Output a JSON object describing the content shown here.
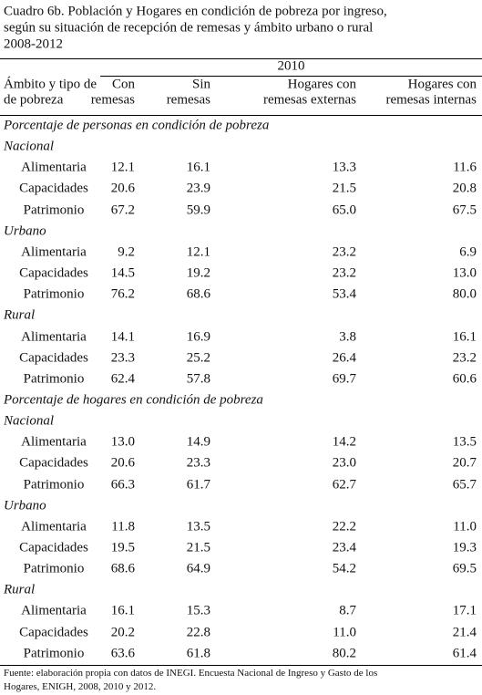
{
  "title": [
    "Cuadro 6b. Población y Hogares en condición de pobreza por ingreso,",
    "según su situación de recepción de remesas y ámbito urbano o rural",
    "2008-2012"
  ],
  "table": {
    "year": "2010",
    "header": [
      [
        "Ámbito y tipo de",
        "de pobreza"
      ],
      [
        "Con",
        "remesas"
      ],
      [
        "Sin",
        "remesas"
      ],
      [
        "Hogares con",
        "remesas externas"
      ],
      [
        "Hogares con",
        "remesas internas"
      ]
    ],
    "sections": [
      {
        "title": "Porcentaje de personas en condición de pobreza",
        "groups": [
          {
            "name": "Nacional",
            "rows": [
              {
                "label": "Alimentaria",
                "values": [
                  "12.1",
                  "16.1",
                  "13.3",
                  "11.6"
                ]
              },
              {
                "label": "Capacidades",
                "values": [
                  "20.6",
                  "23.9",
                  "21.5",
                  "20.8"
                ]
              },
              {
                "label": "Patrimonio",
                "values": [
                  "67.2",
                  "59.9",
                  "65.0",
                  "67.5"
                ]
              }
            ]
          },
          {
            "name": "Urbano",
            "rows": [
              {
                "label": "Alimentaria",
                "values": [
                  "9.2",
                  "12.1",
                  "23.2",
                  "6.9"
                ]
              },
              {
                "label": "Capacidades",
                "values": [
                  "14.5",
                  "19.2",
                  "23.2",
                  "13.0"
                ]
              },
              {
                "label": "Patrimonio",
                "values": [
                  "76.2",
                  "68.6",
                  "53.4",
                  "80.0"
                ]
              }
            ]
          },
          {
            "name": "Rural",
            "rows": [
              {
                "label": "Alimentaria",
                "values": [
                  "14.1",
                  "16.9",
                  "3.8",
                  "16.1"
                ]
              },
              {
                "label": "Capacidades",
                "values": [
                  "23.3",
                  "25.2",
                  "26.4",
                  "23.2"
                ]
              },
              {
                "label": "Patrimonio",
                "values": [
                  "62.4",
                  "57.8",
                  "69.7",
                  "60.6"
                ]
              }
            ]
          }
        ]
      },
      {
        "title": "Porcentaje de hogares en condición de pobreza",
        "groups": [
          {
            "name": "Nacional",
            "rows": [
              {
                "label": "Alimentaria",
                "values": [
                  "13.0",
                  "14.9",
                  "14.2",
                  "13.5"
                ]
              },
              {
                "label": "Capacidades",
                "values": [
                  "20.6",
                  "23.3",
                  "23.0",
                  "20.7"
                ]
              },
              {
                "label": "Patrimonio",
                "values": [
                  "66.3",
                  "61.7",
                  "62.7",
                  "65.7"
                ]
              }
            ]
          },
          {
            "name": "Urbano",
            "rows": [
              {
                "label": "Alimentaria",
                "values": [
                  "11.8",
                  "13.5",
                  "22.2",
                  "11.0"
                ]
              },
              {
                "label": "Capacidades",
                "values": [
                  "19.5",
                  "21.5",
                  "23.4",
                  "19.3"
                ]
              },
              {
                "label": "Patrimonio",
                "values": [
                  "68.6",
                  "64.9",
                  "54.2",
                  "69.5"
                ]
              }
            ]
          },
          {
            "name": "Rural",
            "rows": [
              {
                "label": "Alimentaria",
                "values": [
                  "16.1",
                  "15.3",
                  "8.7",
                  "17.1"
                ]
              },
              {
                "label": "Capacidades",
                "values": [
                  "20.2",
                  "22.8",
                  "11.0",
                  "21.4"
                ]
              },
              {
                "label": "Patrimonio",
                "values": [
                  "63.6",
                  "61.8",
                  "80.2",
                  "61.4"
                ]
              }
            ]
          }
        ]
      }
    ]
  },
  "footnote": [
    "Fuente: elaboración propia con datos de INEGI. Encuesta Nacional de Ingreso y Gasto de los",
    "Hogares, ENIGH, 2008, 2010 y 2012."
  ]
}
